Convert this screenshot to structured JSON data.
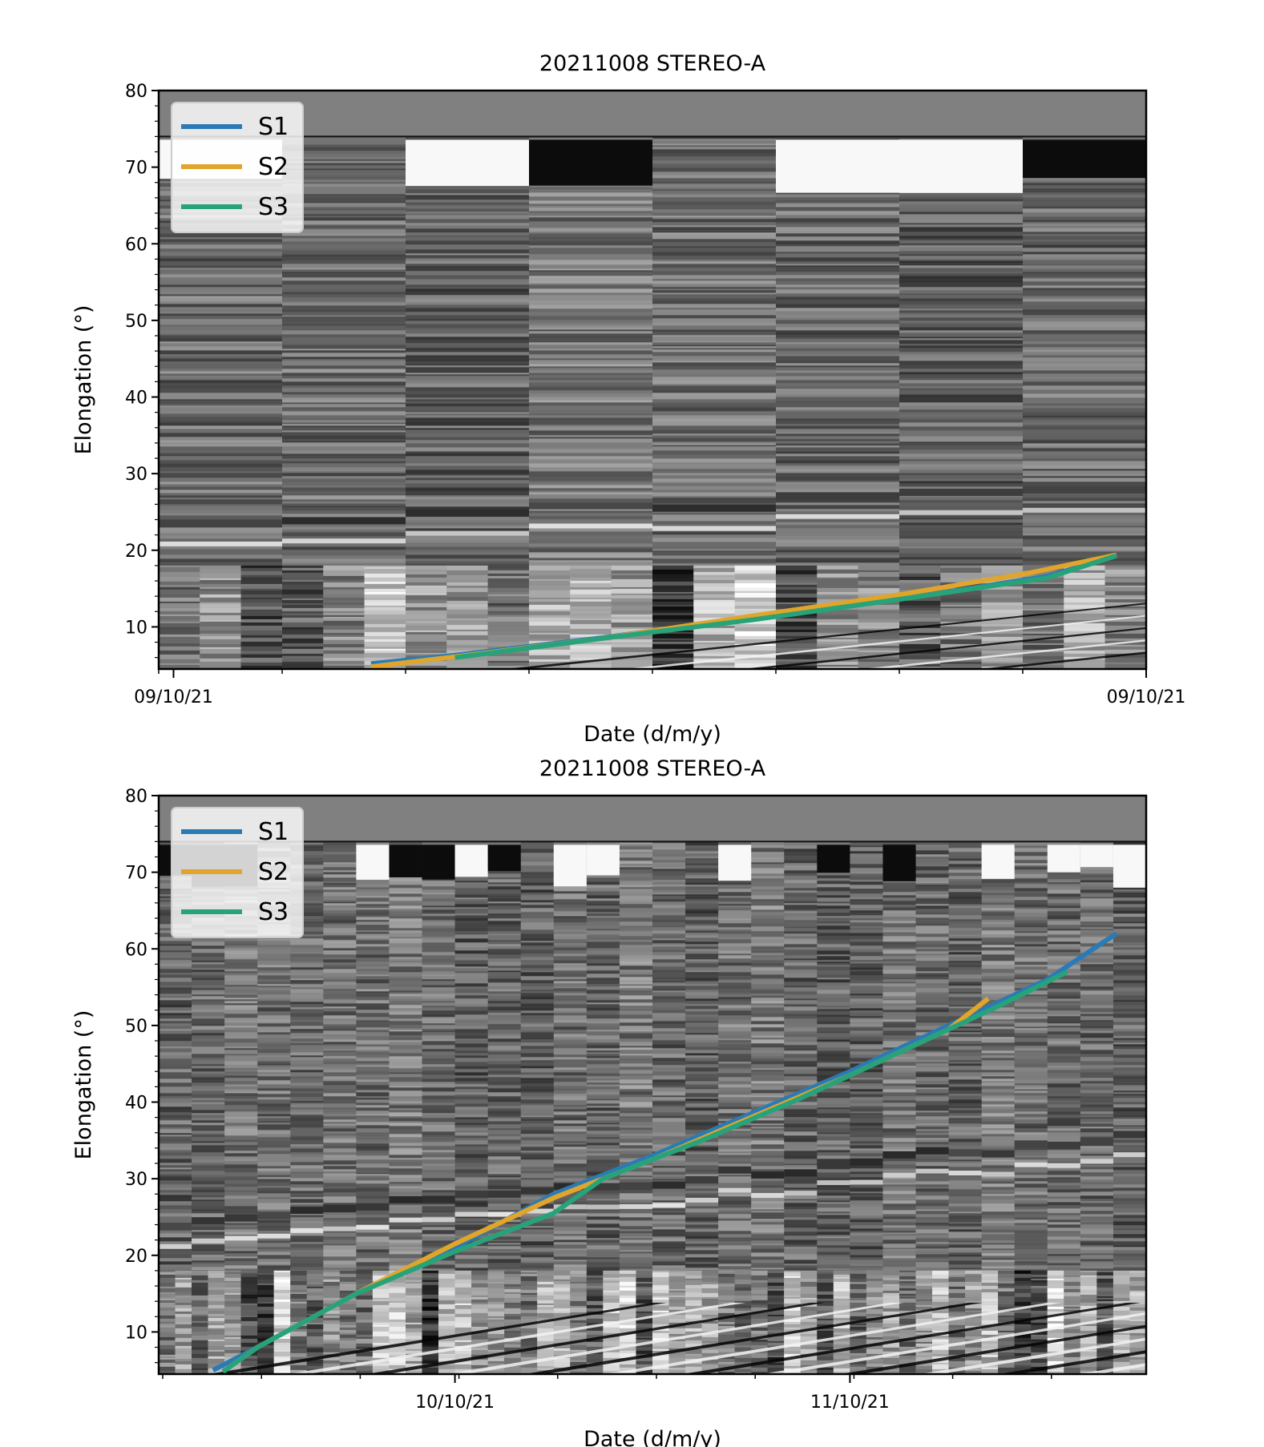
{
  "chart_data": [
    {
      "type": "line",
      "title": "20211008 STEREO-A",
      "xlabel": "Date (d/m/y)",
      "ylabel": "Elongation (°)",
      "ylim": [
        4.5,
        80
      ],
      "yticks": [
        10,
        20,
        30,
        40,
        50,
        60,
        70,
        80
      ],
      "xticks": [
        {
          "label": "09/10/21",
          "pos": 0.015
        },
        {
          "label": "09/10/21",
          "pos": 1.0
        }
      ],
      "background": "jmap-greyscale",
      "legend": "top-left",
      "series": [
        {
          "name": "S1",
          "color": "#2a7bb5",
          "points": [
            [
              0.215,
              5.2
            ],
            [
              0.3,
              6.3
            ],
            [
              0.45,
              8.6
            ],
            [
              0.6,
              11.2
            ],
            [
              0.75,
              13.6
            ],
            [
              0.9,
              16.6
            ],
            [
              0.97,
              19.3
            ]
          ]
        },
        {
          "name": "S2",
          "color": "#e0a52a",
          "points": [
            [
              0.215,
              4.8
            ],
            [
              0.3,
              6.1
            ],
            [
              0.45,
              8.5
            ],
            [
              0.6,
              11.4
            ],
            [
              0.75,
              14.2
            ],
            [
              0.88,
              17.0
            ],
            [
              0.97,
              19.4
            ]
          ]
        },
        {
          "name": "S3",
          "color": "#27a37a",
          "points": [
            [
              0.3,
              6.0
            ],
            [
              0.45,
              8.5
            ],
            [
              0.6,
              10.9
            ],
            [
              0.75,
              13.6
            ],
            [
              0.9,
              16.4
            ],
            [
              0.97,
              19.3
            ]
          ]
        }
      ]
    },
    {
      "type": "line",
      "title": "20211008 STEREO-A",
      "xlabel": "Date (d/m/y)",
      "ylabel": "Elongation (°)",
      "ylim": [
        4.5,
        80
      ],
      "yticks": [
        10,
        20,
        30,
        40,
        50,
        60,
        70,
        80
      ],
      "xticks": [
        {
          "label": "10/10/21",
          "pos": 0.3
        },
        {
          "label": "11/10/21",
          "pos": 0.7
        }
      ],
      "background": "jmap-greyscale",
      "legend": "top-left",
      "series": [
        {
          "name": "S1",
          "color": "#2a7bb5",
          "points": [
            [
              0.055,
              5.0
            ],
            [
              0.1,
              8.0
            ],
            [
              0.2,
              15.0
            ],
            [
              0.3,
              21.0
            ],
            [
              0.4,
              28.0
            ],
            [
              0.5,
              33.0
            ],
            [
              0.6,
              38.5
            ],
            [
              0.7,
              44.0
            ],
            [
              0.8,
              50.0
            ],
            [
              0.9,
              56.0
            ],
            [
              0.97,
              62.0
            ]
          ]
        },
        {
          "name": "S2",
          "color": "#e0a52a",
          "points": [
            [
              0.065,
              4.8
            ],
            [
              0.1,
              8.0
            ],
            [
              0.2,
              15.0
            ],
            [
              0.3,
              21.5
            ],
            [
              0.4,
              27.5
            ],
            [
              0.5,
              32.5
            ],
            [
              0.6,
              38.0
            ],
            [
              0.7,
              43.5
            ],
            [
              0.8,
              49.5
            ],
            [
              0.84,
              53.5
            ]
          ]
        },
        {
          "name": "S3",
          "color": "#27a37a",
          "points": [
            [
              0.065,
              4.8
            ],
            [
              0.1,
              8.0
            ],
            [
              0.2,
              15.0
            ],
            [
              0.3,
              20.5
            ],
            [
              0.4,
              25.5
            ],
            [
              0.45,
              30.0
            ],
            [
              0.55,
              35.0
            ],
            [
              0.65,
              40.5
            ],
            [
              0.75,
              46.5
            ],
            [
              0.85,
              52.5
            ],
            [
              0.92,
              57.0
            ]
          ]
        }
      ]
    }
  ]
}
